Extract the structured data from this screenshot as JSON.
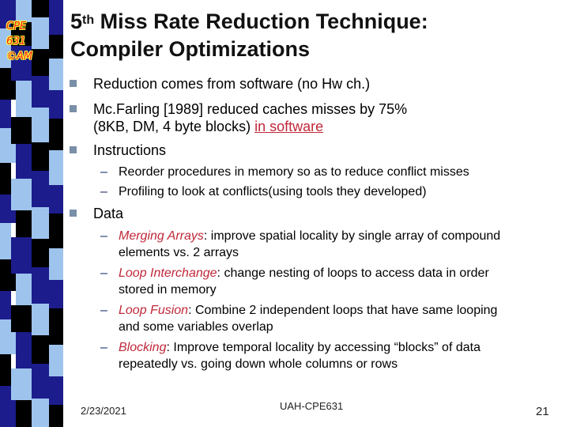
{
  "logo": {
    "line1": "CPE",
    "line2": "631",
    "line3": "©AM"
  },
  "title": {
    "ordinal": "5",
    "ordinal_sup": "th",
    "line1_rest": " Miss Rate Reduction Technique:",
    "line2": "Compiler Optimizations"
  },
  "bullets": {
    "b1": "Reduction comes from software (no Hw ch.)",
    "b2_line1": "Mc.Farling [1989] reduced caches misses by 75%",
    "b2_line2_pre": "(8KB, DM, 4 byte blocks) ",
    "b2_line2_link": "in software",
    "b3": "Instructions",
    "b3_sub1": "Reorder procedures in memory so as to reduce conflict misses",
    "b3_sub2": "Profiling to look at conflicts(using tools they developed)",
    "b4": "Data",
    "d1_term": "Merging Arrays",
    "d1_line1": ": improve spatial locality by single array of compound",
    "d1_line2": "elements vs. 2 arrays",
    "d2_term": "Loop Interchange",
    "d2_line1": ": change nesting of loops to access data in order",
    "d2_line2": "stored in memory",
    "d3_term": "Loop Fusion",
    "d3_line1": ": Combine 2 independent loops that have same looping",
    "d3_line2": "and some variables overlap",
    "d4_term": "Blocking",
    "d4_line1": ": Improve temporal locality by accessing “blocks” of data",
    "d4_line2": "repeatedly vs. going down whole columns or rows"
  },
  "footer": {
    "date": "2/23/2021",
    "course": "UAH-CPE631",
    "page": "21"
  },
  "colors": {
    "accent_red": "#c0283a",
    "strip_navy": "#1c1c8c",
    "strip_light": "#9ec4ee",
    "strip_black": "#000000"
  }
}
